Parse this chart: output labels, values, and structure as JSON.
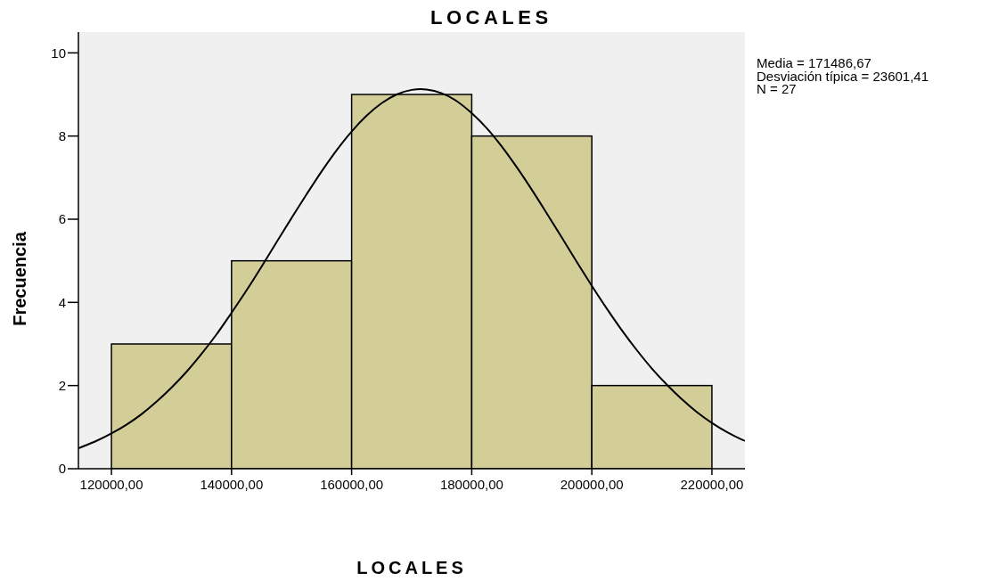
{
  "chart_data": {
    "type": "histogram",
    "title": "LOCALES",
    "xlabel": "LOCALES",
    "ylabel": "Frecuencia",
    "bins": [
      120000,
      140000,
      160000,
      180000,
      200000,
      220000
    ],
    "values": [
      3,
      5,
      9,
      8,
      2
    ],
    "color": "#d3ce98",
    "series": [
      {
        "type": "line",
        "color": "#000000",
        "marker": "none",
        "x": [
          114500,
          115000,
          117500,
          120000,
          122500,
          125000,
          127500,
          130000,
          132500,
          135000,
          137500,
          140000,
          142500,
          145000,
          147500,
          150000,
          152500,
          155000,
          157500,
          160000,
          162500,
          165000,
          167500,
          170000,
          171487,
          172500,
          175000,
          177500,
          180000,
          182500,
          185000,
          187500,
          190000,
          192500,
          195000,
          197500,
          200000,
          202500,
          205000,
          207500,
          210000,
          212500,
          215000,
          217500,
          220000,
          222500,
          225000,
          225500
        ],
        "values": [
          0.49,
          0.52,
          0.67,
          0.85,
          1.06,
          1.31,
          1.61,
          1.95,
          2.33,
          2.76,
          3.23,
          3.75,
          4.29,
          4.86,
          5.45,
          6.03,
          6.6,
          7.15,
          7.66,
          8.11,
          8.49,
          8.79,
          9.0,
          9.11,
          9.13,
          9.12,
          9.03,
          8.84,
          8.55,
          8.19,
          7.75,
          7.25,
          6.71,
          6.14,
          5.56,
          4.97,
          4.4,
          3.85,
          3.33,
          2.85,
          2.41,
          2.02,
          1.67,
          1.36,
          1.1,
          0.88,
          0.7,
          0.67
        ]
      }
    ],
    "xlim": [
      114500,
      225500
    ],
    "xticks": [
      {
        "value": 120000,
        "label": "120000,00"
      },
      {
        "value": 140000,
        "label": "140000,00"
      },
      {
        "value": 160000,
        "label": "160000,00"
      },
      {
        "value": 180000,
        "label": "180000,00"
      },
      {
        "value": 200000,
        "label": "200000,00"
      },
      {
        "value": 220000,
        "label": "220000,00"
      }
    ],
    "ylim": [
      0,
      10.5
    ],
    "yticks": [
      0,
      2,
      4,
      6,
      8,
      10
    ],
    "annotations": [
      "Media = 171486,67",
      "Desviación típica = 23601,41",
      "N = 27"
    ]
  }
}
